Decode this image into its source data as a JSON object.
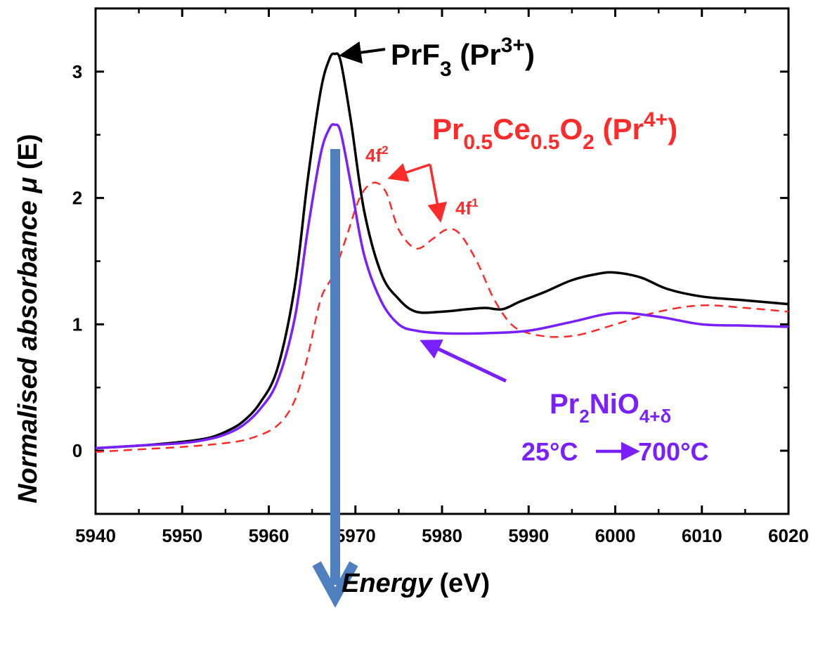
{
  "chart_data": {
    "type": "line",
    "xlabel_italic": "Energy",
    "xlabel_unit": "(eV)",
    "ylabel_italic": "Normalised absorbance μ",
    "ylabel_unit": "(E)",
    "xlim": [
      5940,
      6020
    ],
    "ylim": [
      -0.5,
      3.5
    ],
    "x_ticks": [
      5940,
      5950,
      5960,
      5970,
      5980,
      5990,
      6000,
      6010,
      6020
    ],
    "y_ticks": [
      0,
      1,
      2,
      3
    ],
    "grid": false,
    "colors": {
      "prf3": "#000000",
      "prceo2": "#ff2a2a",
      "pr2nio4": "#7a1fff",
      "marker": "#4f7fbf"
    },
    "series": [
      {
        "key": "prf3",
        "style": "solid",
        "x": [
          5940,
          5945,
          5950,
          5953,
          5955,
          5957,
          5959,
          5961,
          5963,
          5964.5,
          5966,
          5967,
          5967.6,
          5968.3,
          5969.5,
          5971,
          5973,
          5975,
          5977,
          5980,
          5983,
          5985,
          5987,
          5989,
          5992,
          5995,
          5998,
          6000,
          6003,
          6006,
          6010,
          6015,
          6020
        ],
        "y": [
          0.02,
          0.04,
          0.07,
          0.1,
          0.15,
          0.23,
          0.38,
          0.65,
          1.3,
          2.15,
          2.85,
          3.1,
          3.14,
          3.08,
          2.6,
          1.9,
          1.4,
          1.2,
          1.1,
          1.1,
          1.12,
          1.13,
          1.12,
          1.18,
          1.26,
          1.35,
          1.4,
          1.41,
          1.37,
          1.28,
          1.22,
          1.19,
          1.16
        ]
      },
      {
        "key": "prceo2",
        "style": "dashed",
        "x": [
          5940,
          5945,
          5950,
          5955,
          5958,
          5961,
          5963,
          5964.5,
          5966,
          5967.5,
          5969,
          5970.5,
          5972,
          5973.5,
          5975,
          5977,
          5979,
          5980.5,
          5982,
          5984,
          5986,
          5988,
          5990,
          5993,
          5996,
          6000,
          6005,
          6010,
          6015,
          6020
        ],
        "y": [
          -0.01,
          0.01,
          0.03,
          0.06,
          0.1,
          0.2,
          0.4,
          0.75,
          1.2,
          1.4,
          1.7,
          2.0,
          2.12,
          2.05,
          1.75,
          1.6,
          1.68,
          1.75,
          1.72,
          1.5,
          1.2,
          1.0,
          0.93,
          0.9,
          0.92,
          1.0,
          1.1,
          1.15,
          1.13,
          1.1
        ]
      },
      {
        "key": "pr2nio4",
        "style": "solid",
        "x": [
          5940,
          5945,
          5950,
          5953,
          5955,
          5957,
          5959,
          5961,
          5963,
          5964.5,
          5966,
          5967,
          5967.6,
          5968.3,
          5969.5,
          5971,
          5973,
          5975,
          5977,
          5980,
          5985,
          5990,
          5995,
          6000,
          6005,
          6010,
          6015,
          6020
        ],
        "y": [
          0.02,
          0.04,
          0.06,
          0.09,
          0.13,
          0.2,
          0.33,
          0.55,
          1.05,
          1.75,
          2.35,
          2.55,
          2.58,
          2.52,
          2.1,
          1.55,
          1.18,
          1.0,
          0.95,
          0.93,
          0.93,
          0.95,
          1.02,
          1.09,
          1.06,
          1.0,
          0.99,
          0.98
        ]
      }
    ],
    "annotations": {
      "prf3": {
        "base": "PrF",
        "sub": "3",
        "mid": " (Pr",
        "sup": "3+",
        "end": ")"
      },
      "prceo2": {
        "p1": "Pr",
        "s1": "0.5",
        "p2": "Ce",
        "s2": "0.5",
        "p3": "O",
        "s3": "2",
        "p4": " (Pr",
        "sup": "4+",
        "end": ")"
      },
      "f2": {
        "base": "4f",
        "sup": "2"
      },
      "f1": {
        "base": "4f",
        "sup": "1"
      },
      "pr2nio4": {
        "p1": "Pr",
        "s1": "2",
        "p2": "NiO",
        "s2": "4+δ"
      },
      "temp_start": "25°C",
      "temp_end": "700°C"
    }
  }
}
